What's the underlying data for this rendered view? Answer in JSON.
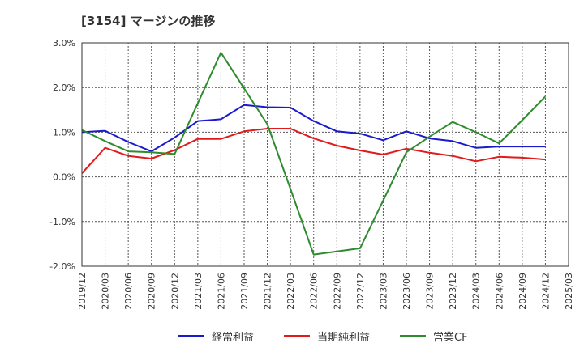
{
  "chart_data": {
    "type": "line",
    "title": "[3154]  マージンの推移",
    "x": [
      "2019/12",
      "2020/03",
      "2020/06",
      "2020/09",
      "2020/12",
      "2021/03",
      "2021/06",
      "2021/09",
      "2021/12",
      "2022/03",
      "2022/06",
      "2022/09",
      "2022/12",
      "2023/03",
      "2023/06",
      "2023/09",
      "2023/12",
      "2024/03",
      "2024/06",
      "2024/09",
      "2024/12",
      "2025/03"
    ],
    "ylim": [
      -2.0,
      3.0
    ],
    "yticks": [
      3.0,
      2.0,
      1.0,
      0.0,
      -1.0,
      -2.0
    ],
    "ytick_labels": [
      "3.0%",
      "2.0%",
      "1.0%",
      "0.0%",
      "-1.0%",
      "-2.0%"
    ],
    "grid": true,
    "legend_position": "bottom",
    "series": [
      {
        "name": "経常利益",
        "color": "#1a1acd",
        "values": [
          1.0,
          1.03,
          0.78,
          0.57,
          0.88,
          1.25,
          1.29,
          1.61,
          1.56,
          1.55,
          1.25,
          1.02,
          0.97,
          0.82,
          1.02,
          0.86,
          0.8,
          0.65,
          0.68,
          0.68,
          0.68,
          null
        ]
      },
      {
        "name": "当期純利益",
        "color": "#e01b1b",
        "values": [
          0.08,
          0.65,
          0.47,
          0.41,
          0.6,
          0.85,
          0.85,
          1.02,
          1.08,
          1.08,
          0.86,
          0.7,
          0.59,
          0.5,
          0.63,
          0.54,
          0.47,
          0.35,
          0.45,
          0.43,
          0.39,
          null
        ]
      },
      {
        "name": "営業CF",
        "color": "#2e8b2e",
        "values": [
          1.05,
          0.8,
          0.57,
          0.55,
          0.51,
          1.65,
          2.78,
          1.98,
          1.18,
          -0.27,
          -1.74,
          -1.67,
          -1.6,
          -0.53,
          0.55,
          0.9,
          1.23,
          1.0,
          0.75,
          1.27,
          1.8,
          null
        ]
      }
    ]
  }
}
